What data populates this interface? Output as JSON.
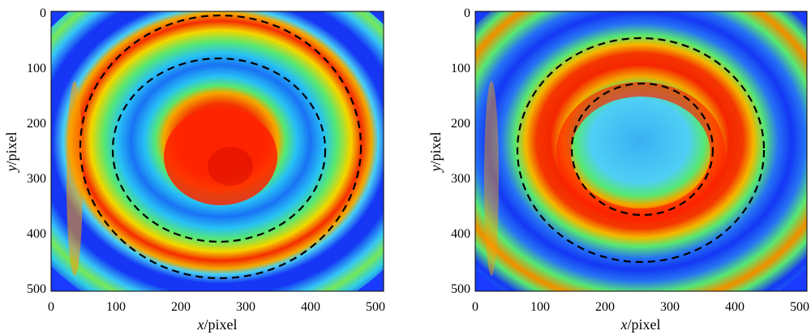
{
  "figure": {
    "panels": [
      {
        "id": "left",
        "xlabel_var": "x",
        "xlabel_unit": "/pixel",
        "ylabel_var": "y",
        "ylabel_unit": "/pixel",
        "xticks": [
          "0",
          "100",
          "200",
          "300",
          "400",
          "500"
        ],
        "yticks": [
          "0",
          "100",
          "200",
          "300",
          "400",
          "500"
        ],
        "xlim": [
          0,
          512
        ],
        "ylim": [
          0,
          512
        ],
        "center": [
          258,
          248
        ],
        "spot_radius": 75,
        "rings": [
          {
            "radius": 230,
            "color": "#2a5fff"
          },
          {
            "radius": 200,
            "color": "#ffe000"
          },
          {
            "radius": 168,
            "color": "#ff3000"
          },
          {
            "radius": 125,
            "color": "#4ab5ff"
          },
          {
            "radius": 100,
            "color": "#2a5fff"
          },
          {
            "radius": 260,
            "color": "#ffd000"
          },
          {
            "radius": 292,
            "color": "#2a5fff"
          },
          {
            "radius": 325,
            "color": "#22d3e0"
          }
        ],
        "dashed_circles": [
          {
            "cx": 258,
            "cy": 248,
            "r": 230
          },
          {
            "cx": 258,
            "cy": 248,
            "r": 165
          }
        ]
      },
      {
        "id": "right",
        "xlabel_var": "x",
        "xlabel_unit": "/pixel",
        "ylabel_var": "y",
        "ylabel_unit": "/pixel",
        "xticks": [
          "0",
          "100",
          "200",
          "300",
          "400",
          "500"
        ],
        "yticks": [
          "0",
          "100",
          "200",
          "300",
          "400",
          "500"
        ],
        "xlim": [
          0,
          512
        ],
        "ylim": [
          0,
          512
        ],
        "center": [
          255,
          248
        ],
        "spot_radius": 0,
        "rings": [
          {
            "radius": 200,
            "color": "#2a5fff"
          },
          {
            "radius": 120,
            "color": "#ff2a00"
          },
          {
            "radius": 95,
            "color": "#ffc000"
          },
          {
            "radius": 175,
            "color": "#2a5fff"
          },
          {
            "radius": 258,
            "color": "#22d3e0"
          },
          {
            "radius": 290,
            "color": "#2a5fff"
          },
          {
            "radius": 320,
            "color": "#ffd000"
          }
        ],
        "dashed_circles": [
          {
            "cx": 255,
            "cy": 248,
            "r": 198
          },
          {
            "cx": 255,
            "cy": 248,
            "r": 116
          }
        ]
      }
    ]
  },
  "colors": {
    "background_blue": "#0a2cff",
    "mid_cyan": "#33d6f0",
    "mid_green": "#5cf277",
    "yellow": "#ffe200",
    "orange": "#ff8a00",
    "red": "#ff2300",
    "dark_red": "#c50000",
    "dash_color": "#000000"
  }
}
